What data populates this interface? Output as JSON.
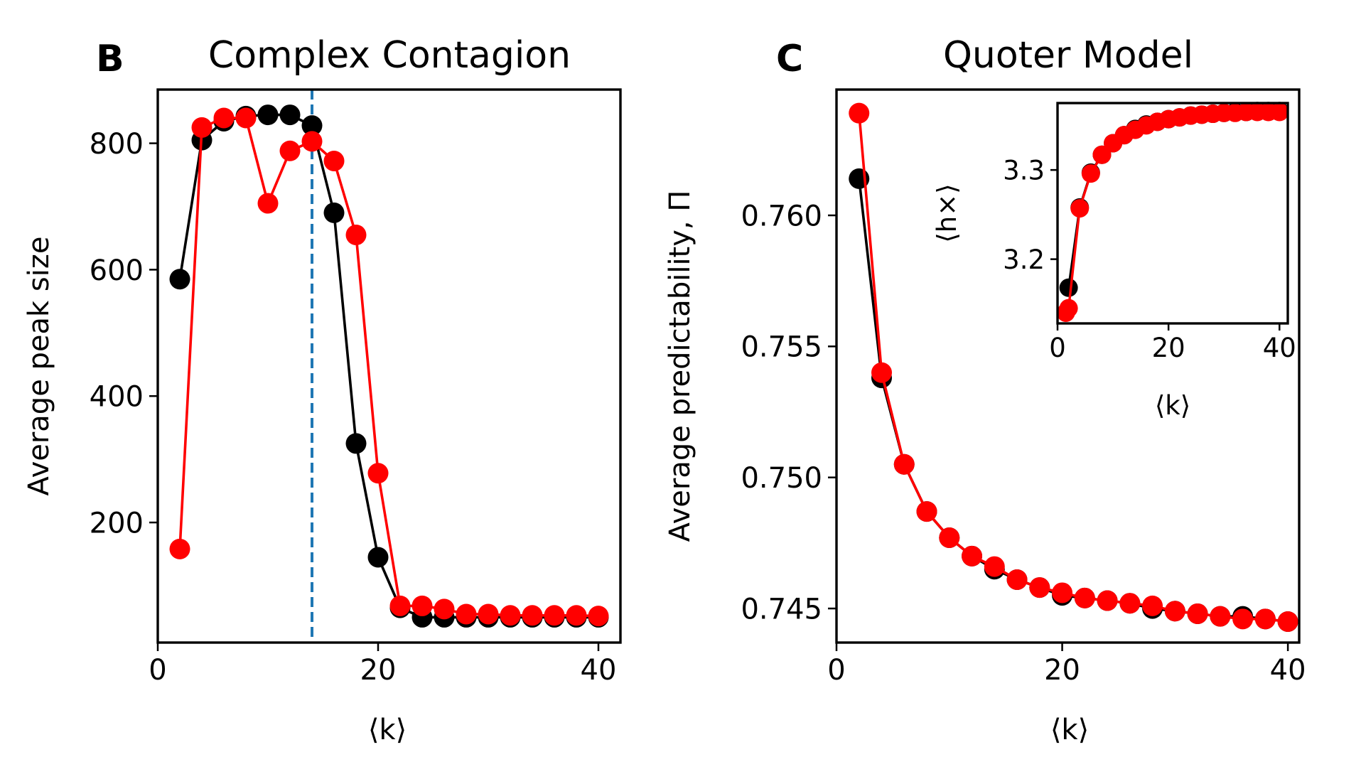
{
  "chart_data": [
    {
      "panel": "B",
      "type": "line",
      "title": "Complex Contagion",
      "xlabel": "⟨k⟩",
      "ylabel": "Average peak size",
      "xlim": [
        0,
        42
      ],
      "ylim": [
        10,
        885
      ],
      "xticks": [
        0,
        20,
        40
      ],
      "yticks": [
        200,
        400,
        600,
        800
      ],
      "xtick_labels": [
        "0",
        "20",
        "40"
      ],
      "ytick_labels": [
        "200",
        "400",
        "600",
        "800"
      ],
      "vline": {
        "x": 14,
        "color": "#1f77b4",
        "style": "dashed"
      },
      "grid": false,
      "series": [
        {
          "color": "#000000",
          "x": [
            2,
            4,
            6,
            8,
            10,
            12,
            14,
            16,
            18,
            20,
            22,
            24,
            26,
            28,
            30,
            32,
            34,
            36,
            38,
            40
          ],
          "values": [
            585,
            805,
            835,
            843,
            845,
            845,
            828,
            690,
            325,
            145,
            65,
            50,
            50,
            50,
            50,
            50,
            50,
            50,
            50,
            50
          ]
        },
        {
          "color": "#ff0000",
          "x": [
            2,
            4,
            6,
            8,
            10,
            12,
            14,
            16,
            18,
            20,
            22,
            24,
            26,
            28,
            30,
            32,
            34,
            36,
            38,
            40
          ],
          "values": [
            158,
            825,
            840,
            840,
            705,
            788,
            803,
            772,
            655,
            278,
            68,
            68,
            63,
            55,
            55,
            53,
            53,
            53,
            53,
            52
          ]
        }
      ]
    },
    {
      "panel": "C",
      "type": "line",
      "title": "Quoter Model",
      "xlabel": "⟨k⟩",
      "ylabel": "Average predictability, Π",
      "xlim": [
        0,
        41
      ],
      "ylim": [
        0.7437,
        0.7648
      ],
      "xticks": [
        0,
        20,
        40
      ],
      "yticks": [
        0.745,
        0.75,
        0.755,
        0.76
      ],
      "xtick_labels": [
        "0",
        "20",
        "40"
      ],
      "ytick_labels": [
        "0.745",
        "0.750",
        "0.755",
        "0.760"
      ],
      "grid": false,
      "series": [
        {
          "color": "#000000",
          "x": [
            2,
            4,
            6,
            8,
            10,
            12,
            14,
            16,
            18,
            20,
            22,
            24,
            26,
            28,
            30,
            32,
            34,
            36,
            38,
            40
          ],
          "values": [
            0.7614,
            0.7538,
            0.7505,
            0.7487,
            0.7477,
            0.747,
            0.7465,
            0.7461,
            0.7458,
            0.7455,
            0.7454,
            0.7453,
            0.7452,
            0.745,
            0.7449,
            0.7448,
            0.7447,
            0.7447,
            0.7446,
            0.7445
          ]
        },
        {
          "color": "#ff0000",
          "x": [
            2,
            4,
            6,
            8,
            10,
            12,
            14,
            16,
            18,
            20,
            22,
            24,
            26,
            28,
            30,
            32,
            34,
            36,
            38,
            40
          ],
          "values": [
            0.7639,
            0.754,
            0.7505,
            0.7487,
            0.7477,
            0.747,
            0.7466,
            0.7461,
            0.7458,
            0.7456,
            0.7454,
            0.7453,
            0.7452,
            0.7451,
            0.7449,
            0.7448,
            0.7447,
            0.7446,
            0.7446,
            0.7445
          ]
        }
      ],
      "inset": {
        "type": "line",
        "xlabel": "⟨k⟩",
        "ylabel": "⟨h×⟩",
        "xlim": [
          0,
          41.5
        ],
        "ylim": [
          3.128,
          3.375
        ],
        "xticks": [
          0,
          20,
          40
        ],
        "yticks": [
          3.2,
          3.3
        ],
        "xtick_labels": [
          "0",
          "20",
          "40"
        ],
        "ytick_labels": [
          "3.2",
          "3.3"
        ],
        "series": [
          {
            "color": "#000000",
            "x": [
              2,
              4,
              6,
              8,
              10,
              12,
              14,
              16,
              18,
              20,
              22,
              24,
              26,
              28,
              30,
              32,
              34,
              36,
              38,
              40
            ],
            "values": [
              3.168,
              3.258,
              3.297,
              3.317,
              3.33,
              3.339,
              3.346,
              3.351,
              3.354,
              3.357,
              3.359,
              3.361,
              3.362,
              3.363,
              3.364,
              3.365,
              3.365,
              3.366,
              3.366,
              3.366
            ]
          },
          {
            "color": "#ff0000",
            "x": [
              1.5,
              2,
              4,
              6,
              8,
              10,
              12,
              14,
              16,
              18,
              20,
              22,
              24,
              26,
              28,
              30,
              32,
              34,
              36,
              38,
              40
            ],
            "values": [
              3.14,
              3.145,
              3.257,
              3.296,
              3.317,
              3.33,
              3.339,
              3.345,
              3.35,
              3.354,
              3.357,
              3.359,
              3.361,
              3.362,
              3.363,
              3.364,
              3.364,
              3.365,
              3.365,
              3.365,
              3.365
            ]
          }
        ]
      }
    }
  ]
}
